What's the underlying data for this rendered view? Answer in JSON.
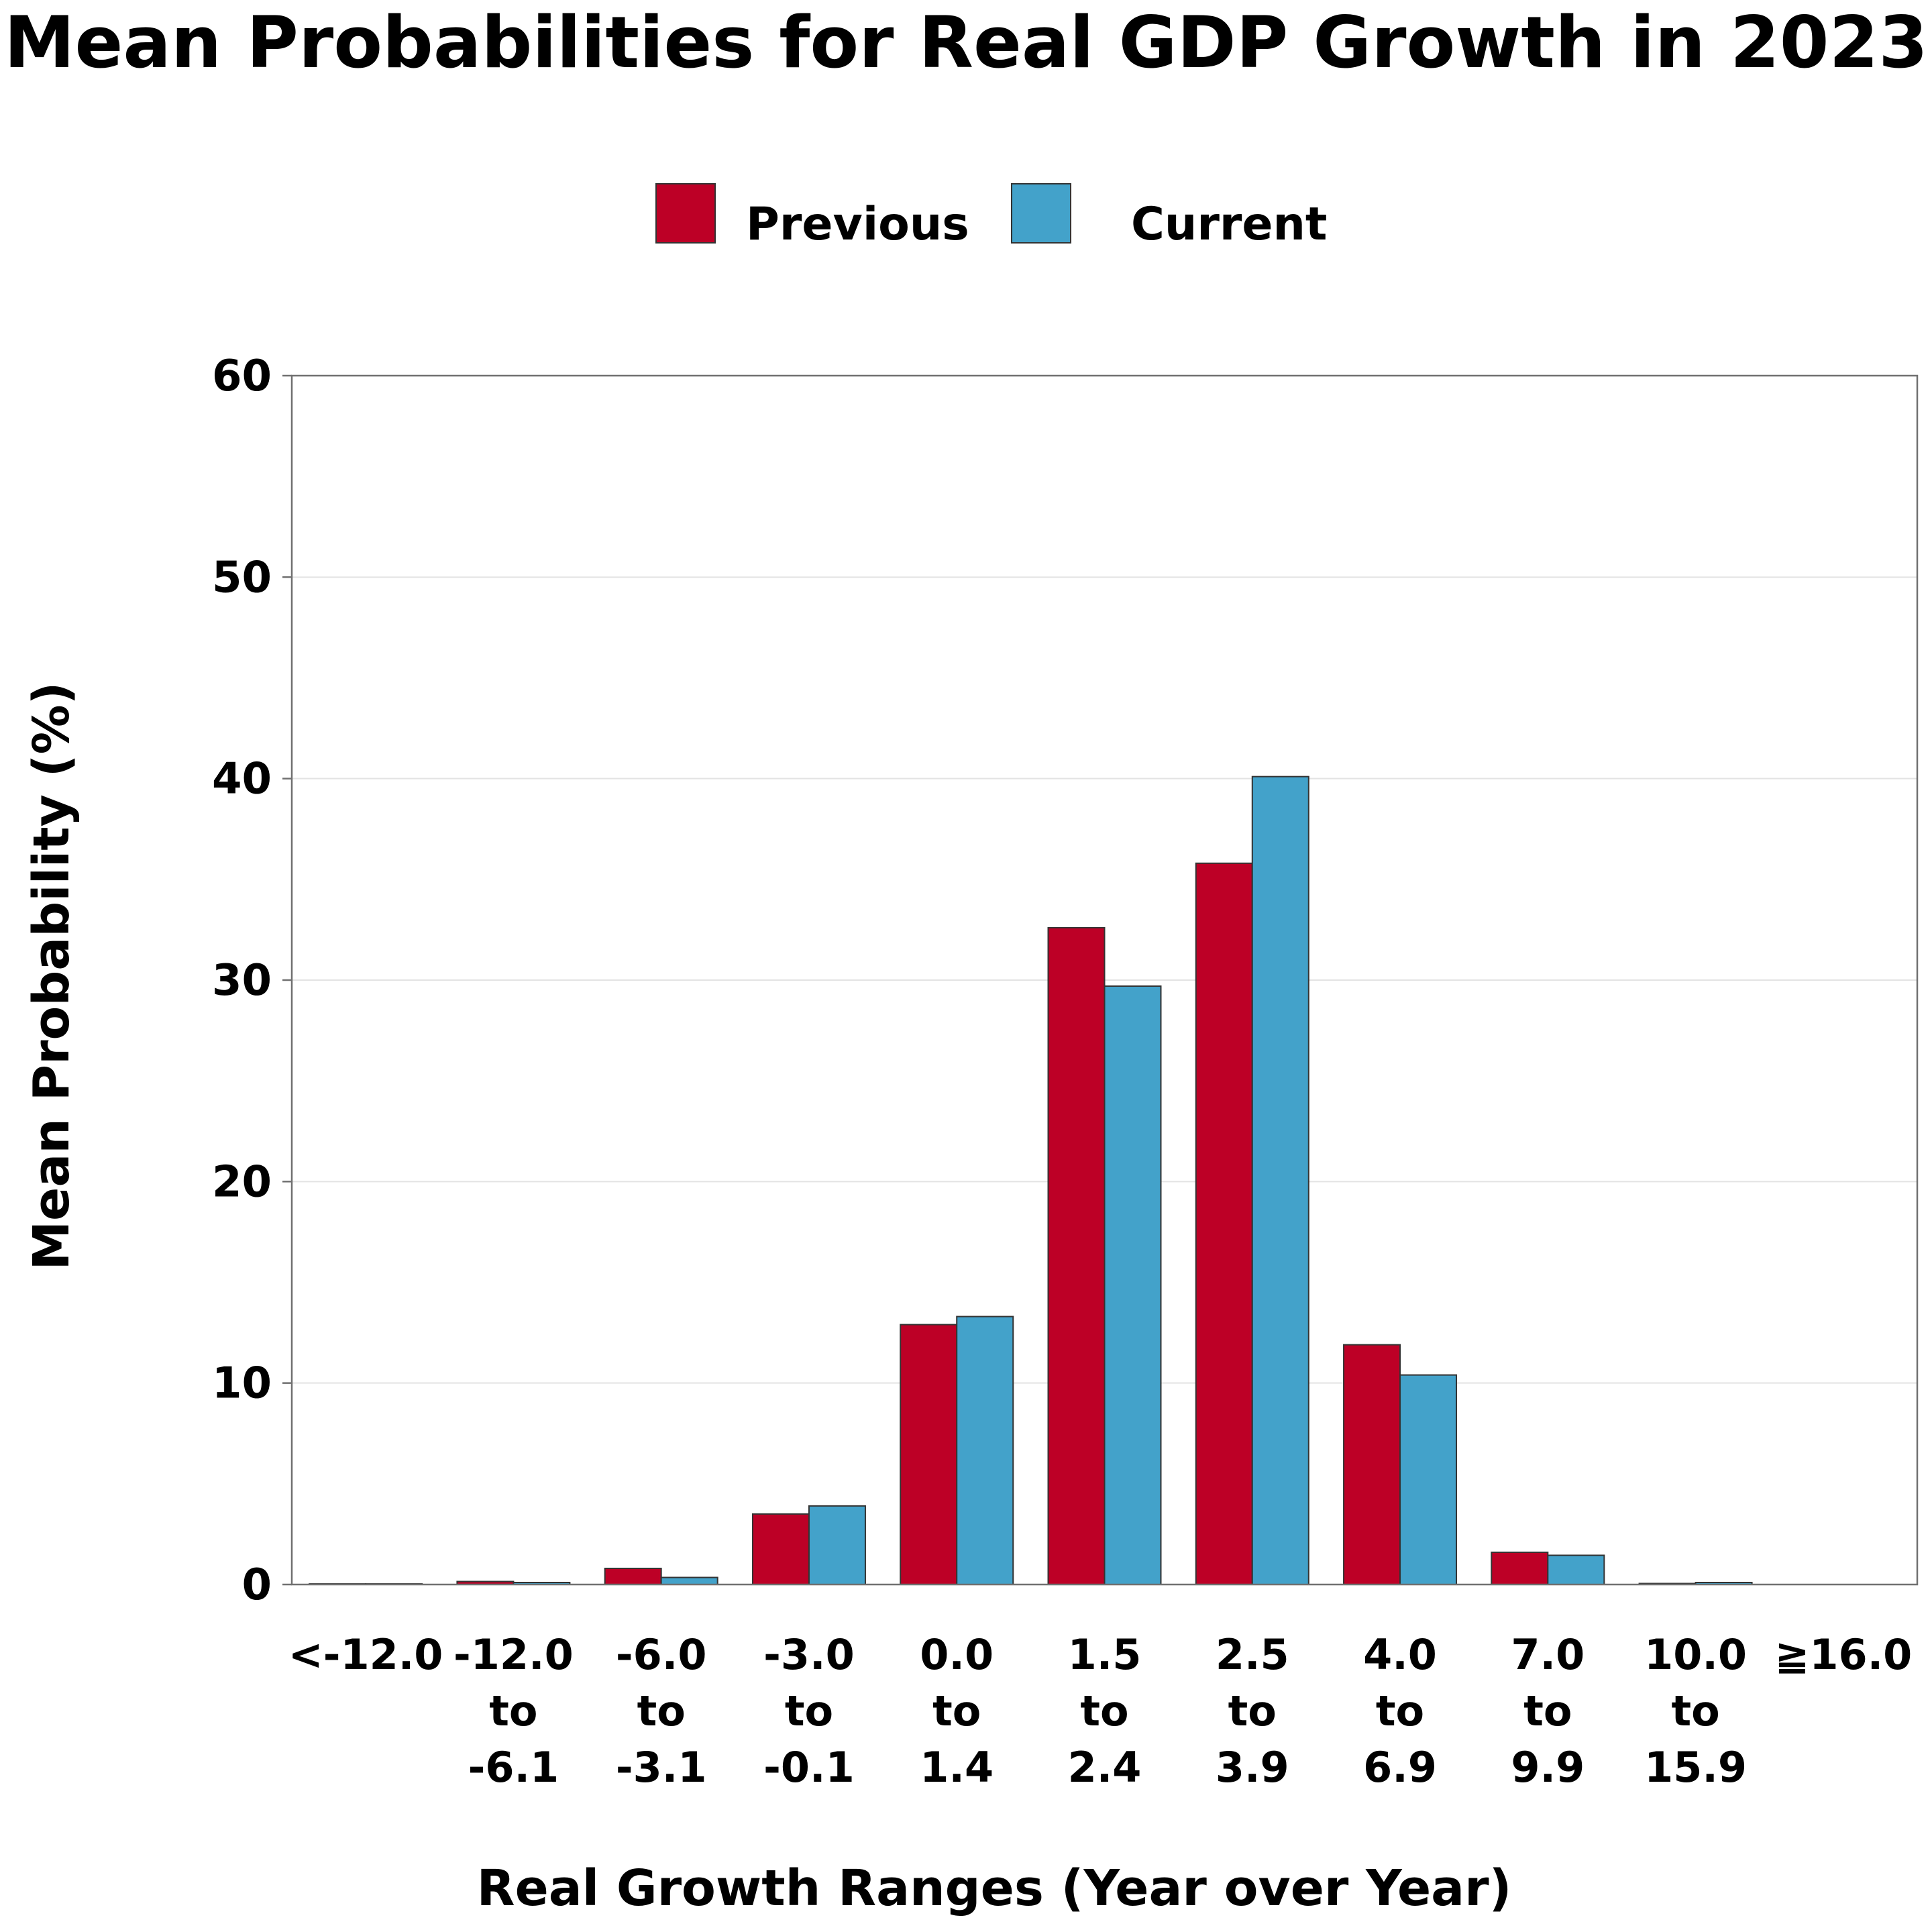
{
  "chart_data": {
    "type": "bar",
    "title": "Mean Probabilities for Real GDP Growth in 2023",
    "xlabel": "Real Growth Ranges (Year over Year)",
    "ylabel": "Mean Probability (%)",
    "ylim": [
      0,
      60
    ],
    "yticks": [
      0,
      10,
      20,
      30,
      40,
      50,
      60
    ],
    "grid": true,
    "legend_position": "top-center",
    "categories": [
      [
        "<-12.0"
      ],
      [
        "-12.0",
        "to",
        "-6.1"
      ],
      [
        "-6.0",
        "to",
        "-3.1"
      ],
      [
        "-3.0",
        "to",
        "-0.1"
      ],
      [
        "0.0",
        "to",
        "1.4"
      ],
      [
        "1.5",
        "to",
        "2.4"
      ],
      [
        "2.5",
        "to",
        "3.9"
      ],
      [
        "4.0",
        "to",
        "6.9"
      ],
      [
        "7.0",
        "to",
        "9.9"
      ],
      [
        "10.0",
        "to",
        "15.9"
      ],
      [
        "≧16.0"
      ]
    ],
    "series": [
      {
        "name": "Previous",
        "color": "#bd0026",
        "values": [
          0.03,
          0.15,
          0.8,
          3.5,
          12.9,
          32.6,
          35.8,
          11.9,
          1.6,
          0.05,
          0.0
        ]
      },
      {
        "name": "Current",
        "color": "#43a2ca",
        "values": [
          0.03,
          0.1,
          0.35,
          3.9,
          13.3,
          29.7,
          40.1,
          10.4,
          1.45,
          0.1,
          0.0
        ]
      }
    ]
  }
}
